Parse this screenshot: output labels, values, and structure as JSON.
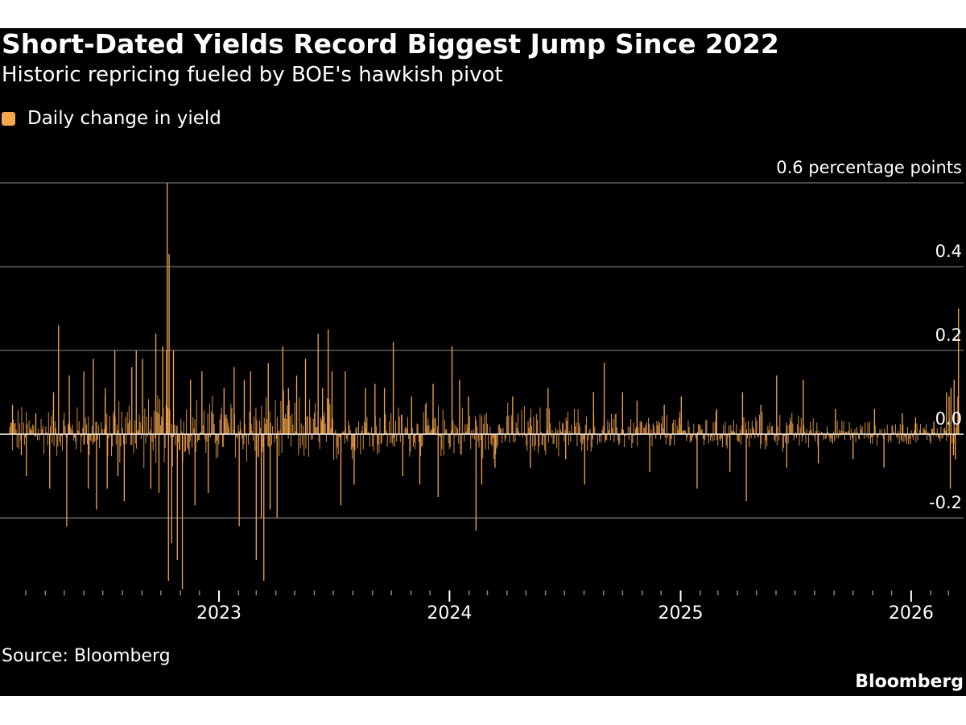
{
  "header": {
    "title": "Short-Dated Yields Record Biggest Jump Since 2022",
    "subtitle": "Historic repricing fueled by BOE's hawkish pivot"
  },
  "footer": {
    "source": "Source: Bloomberg",
    "brand": "Bloomberg"
  },
  "colors": {
    "background": "#000000",
    "bar": "#f5a54a",
    "grid": "#8c8c8c",
    "zero_line": "#ffffff",
    "text": "#ffffff"
  },
  "chart_data": {
    "type": "bar",
    "title": "Short-Dated Yields Record Biggest Jump Since 2022",
    "subtitle": "Historic repricing fueled by BOE's hawkish pivot",
    "x_start": "2022-02-01",
    "x_end": "2026-03-17",
    "xlim": [
      "2022-02-01",
      "2026-03-25"
    ],
    "ylim": [
      -0.37,
      0.6
    ],
    "y_ticks": [
      {
        "value": 0.6,
        "label": "0.6 percentage points"
      },
      {
        "value": 0.4,
        "label": "0.4"
      },
      {
        "value": 0.2,
        "label": "0.2"
      },
      {
        "value": 0.0,
        "label": "0.0"
      },
      {
        "value": -0.2,
        "label": "-0.2"
      }
    ],
    "x_ticks": [
      {
        "date": "2023-01-01",
        "label": "2023"
      },
      {
        "date": "2024-01-01",
        "label": "2024"
      },
      {
        "date": "2025-01-01",
        "label": "2025"
      },
      {
        "date": "2026-01-01",
        "label": "2026"
      }
    ],
    "grid": true,
    "legend_position": "top-left",
    "series": [
      {
        "name": "Daily change in yield",
        "color": "#f5a54a",
        "points": [
          {
            "date": "2022-02-08",
            "value": 0.07
          },
          {
            "date": "2022-02-22",
            "value": -0.05
          },
          {
            "date": "2022-03-02",
            "value": -0.1
          },
          {
            "date": "2022-03-17",
            "value": 0.05
          },
          {
            "date": "2022-04-08",
            "value": -0.13
          },
          {
            "date": "2022-04-14",
            "value": 0.1
          },
          {
            "date": "2022-04-22",
            "value": 0.26
          },
          {
            "date": "2022-05-05",
            "value": -0.22
          },
          {
            "date": "2022-05-09",
            "value": 0.14
          },
          {
            "date": "2022-06-01",
            "value": 0.15
          },
          {
            "date": "2022-06-08",
            "value": -0.13
          },
          {
            "date": "2022-06-16",
            "value": 0.18
          },
          {
            "date": "2022-06-21",
            "value": -0.18
          },
          {
            "date": "2022-07-05",
            "value": 0.11
          },
          {
            "date": "2022-07-08",
            "value": -0.13
          },
          {
            "date": "2022-07-20",
            "value": 0.2
          },
          {
            "date": "2022-07-25",
            "value": -0.1
          },
          {
            "date": "2022-08-04",
            "value": -0.16
          },
          {
            "date": "2022-08-16",
            "value": 0.16
          },
          {
            "date": "2022-08-23",
            "value": 0.2
          },
          {
            "date": "2022-09-02",
            "value": 0.18
          },
          {
            "date": "2022-09-15",
            "value": -0.13
          },
          {
            "date": "2022-09-23",
            "value": 0.24
          },
          {
            "date": "2022-09-28",
            "value": -0.14
          },
          {
            "date": "2022-10-04",
            "value": 0.21
          },
          {
            "date": "2022-10-10",
            "value": 0.2
          },
          {
            "date": "2022-10-11",
            "value": 0.6
          },
          {
            "date": "2022-10-13",
            "value": -0.35
          },
          {
            "date": "2022-10-14",
            "value": 0.43
          },
          {
            "date": "2022-10-18",
            "value": -0.26
          },
          {
            "date": "2022-10-21",
            "value": 0.2
          },
          {
            "date": "2022-10-27",
            "value": -0.3
          },
          {
            "date": "2022-11-04",
            "value": -0.37
          },
          {
            "date": "2022-11-17",
            "value": 0.13
          },
          {
            "date": "2022-11-24",
            "value": -0.17
          },
          {
            "date": "2022-12-05",
            "value": 0.15
          },
          {
            "date": "2022-12-15",
            "value": -0.14
          },
          {
            "date": "2023-01-09",
            "value": 0.11
          },
          {
            "date": "2023-01-25",
            "value": 0.16
          },
          {
            "date": "2023-02-02",
            "value": -0.22
          },
          {
            "date": "2023-02-10",
            "value": 0.13
          },
          {
            "date": "2023-02-20",
            "value": 0.15
          },
          {
            "date": "2023-03-01",
            "value": -0.3
          },
          {
            "date": "2023-03-09",
            "value": -0.2
          },
          {
            "date": "2023-03-13",
            "value": -0.35
          },
          {
            "date": "2023-03-20",
            "value": 0.17
          },
          {
            "date": "2023-03-23",
            "value": -0.18
          },
          {
            "date": "2023-04-03",
            "value": -0.2
          },
          {
            "date": "2023-04-12",
            "value": 0.21
          },
          {
            "date": "2023-04-21",
            "value": 0.11
          },
          {
            "date": "2023-05-04",
            "value": 0.14
          },
          {
            "date": "2023-05-18",
            "value": 0.18
          },
          {
            "date": "2023-06-07",
            "value": 0.24
          },
          {
            "date": "2023-06-14",
            "value": 0.11
          },
          {
            "date": "2023-06-23",
            "value": 0.25
          },
          {
            "date": "2023-06-29",
            "value": 0.15
          },
          {
            "date": "2023-07-13",
            "value": -0.17
          },
          {
            "date": "2023-07-20",
            "value": 0.15
          },
          {
            "date": "2023-08-03",
            "value": -0.12
          },
          {
            "date": "2023-08-21",
            "value": 0.11
          },
          {
            "date": "2023-09-05",
            "value": 0.12
          },
          {
            "date": "2023-09-20",
            "value": 0.11
          },
          {
            "date": "2023-10-04",
            "value": 0.22
          },
          {
            "date": "2023-10-19",
            "value": -0.1
          },
          {
            "date": "2023-11-02",
            "value": 0.09
          },
          {
            "date": "2023-11-15",
            "value": -0.12
          },
          {
            "date": "2023-12-06",
            "value": 0.12
          },
          {
            "date": "2023-12-14",
            "value": -0.15
          },
          {
            "date": "2024-01-05",
            "value": 0.21
          },
          {
            "date": "2024-01-17",
            "value": 0.13
          },
          {
            "date": "2024-01-31",
            "value": 0.09
          },
          {
            "date": "2024-02-12",
            "value": -0.23
          },
          {
            "date": "2024-02-21",
            "value": -0.12
          },
          {
            "date": "2024-03-13",
            "value": -0.08
          },
          {
            "date": "2024-04-10",
            "value": 0.09
          },
          {
            "date": "2024-05-08",
            "value": -0.08
          },
          {
            "date": "2024-06-05",
            "value": 0.11
          },
          {
            "date": "2024-07-03",
            "value": -0.06
          },
          {
            "date": "2024-08-02",
            "value": -0.12
          },
          {
            "date": "2024-08-16",
            "value": 0.1
          },
          {
            "date": "2024-09-02",
            "value": 0.17
          },
          {
            "date": "2024-10-01",
            "value": 0.1
          },
          {
            "date": "2024-10-24",
            "value": 0.08
          },
          {
            "date": "2024-11-13",
            "value": -0.09
          },
          {
            "date": "2024-12-06",
            "value": 0.07
          },
          {
            "date": "2025-01-02",
            "value": 0.09
          },
          {
            "date": "2025-01-27",
            "value": -0.13
          },
          {
            "date": "2025-02-27",
            "value": 0.06
          },
          {
            "date": "2025-03-20",
            "value": -0.09
          },
          {
            "date": "2025-04-09",
            "value": 0.1
          },
          {
            "date": "2025-04-15",
            "value": -0.16
          },
          {
            "date": "2025-05-08",
            "value": 0.07
          },
          {
            "date": "2025-06-02",
            "value": 0.14
          },
          {
            "date": "2025-06-18",
            "value": -0.08
          },
          {
            "date": "2025-07-14",
            "value": 0.13
          },
          {
            "date": "2025-08-07",
            "value": -0.07
          },
          {
            "date": "2025-09-03",
            "value": 0.06
          },
          {
            "date": "2025-10-01",
            "value": -0.06
          },
          {
            "date": "2025-11-04",
            "value": 0.06
          },
          {
            "date": "2025-11-19",
            "value": -0.08
          },
          {
            "date": "2025-12-18",
            "value": 0.05
          },
          {
            "date": "2026-01-08",
            "value": 0.04
          },
          {
            "date": "2026-02-06",
            "value": 0.03
          },
          {
            "date": "2026-02-26",
            "value": 0.1
          },
          {
            "date": "2026-03-02",
            "value": 0.09
          },
          {
            "date": "2026-03-04",
            "value": -0.13
          },
          {
            "date": "2026-03-05",
            "value": 0.11
          },
          {
            "date": "2026-03-09",
            "value": -0.05
          },
          {
            "date": "2026-03-10",
            "value": 0.13
          },
          {
            "date": "2026-03-12",
            "value": -0.06
          },
          {
            "date": "2026-03-16",
            "value": 0.09
          },
          {
            "date": "2026-03-17",
            "value": 0.3
          }
        ]
      }
    ]
  }
}
